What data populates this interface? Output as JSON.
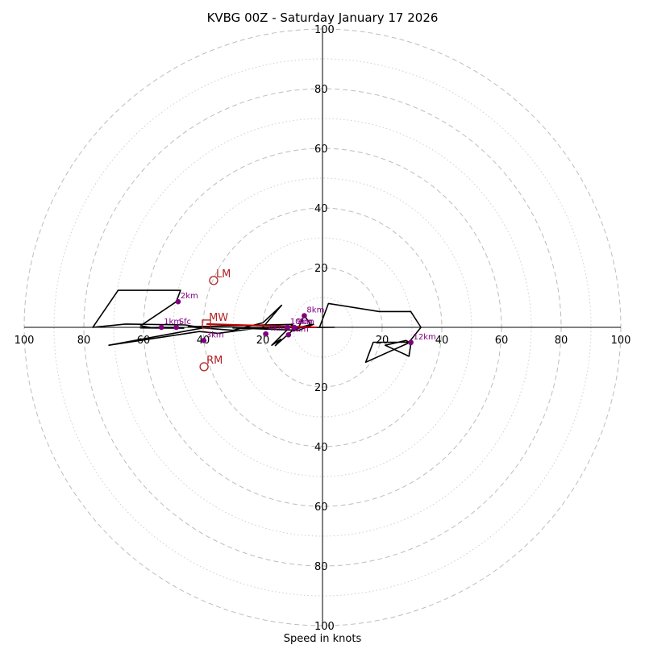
{
  "chart_data": {
    "type": "hodograph",
    "title": "KVBG 00Z - Saturday January 17 2026",
    "xlabel": "Speed in knots",
    "units": "knots",
    "max_speed": 100,
    "major_rings": [
      20,
      40,
      60,
      80,
      100
    ],
    "minor_rings": [
      10,
      30,
      50,
      70,
      90
    ],
    "x_ticks": [
      {
        "value": -100,
        "label": "100"
      },
      {
        "value": -80,
        "label": "80"
      },
      {
        "value": -60,
        "label": "60"
      },
      {
        "value": -40,
        "label": "40"
      },
      {
        "value": -20,
        "label": "20"
      },
      {
        "value": 20,
        "label": "20"
      },
      {
        "value": 40,
        "label": "40"
      },
      {
        "value": 60,
        "label": "60"
      },
      {
        "value": 80,
        "label": "80"
      },
      {
        "value": 100,
        "label": "100"
      }
    ],
    "y_ticks": [
      {
        "value": 100,
        "label": "100"
      },
      {
        "value": 80,
        "label": "80"
      },
      {
        "value": 60,
        "label": "60"
      },
      {
        "value": 40,
        "label": "40"
      },
      {
        "value": 20,
        "label": "20"
      },
      {
        "value": -20,
        "label": "20"
      },
      {
        "value": -40,
        "label": "40"
      },
      {
        "value": -60,
        "label": "60"
      },
      {
        "value": -80,
        "label": "80"
      },
      {
        "value": -100,
        "label": "100"
      }
    ],
    "trace": [
      [
        -49,
        0
      ],
      [
        -54,
        0
      ],
      [
        -61,
        -0.2
      ],
      [
        -46.5,
        -0.3
      ],
      [
        -57,
        -0.2
      ],
      [
        -61,
        0.5
      ],
      [
        -49,
        8.6
      ],
      [
        -47.6,
        12.4
      ],
      [
        -68.5,
        12.4
      ],
      [
        -77,
        0
      ],
      [
        -66,
        1.1
      ],
      [
        -46,
        0.8
      ],
      [
        -40,
        -0.2
      ],
      [
        -71.6,
        -6
      ],
      [
        -41.3,
        -1.4
      ],
      [
        -35,
        -2
      ],
      [
        -20,
        0
      ],
      [
        -13.7,
        7.4
      ],
      [
        -20,
        1.5
      ],
      [
        -30,
        -1
      ],
      [
        -45,
        0.2
      ],
      [
        -10,
        1
      ],
      [
        -17,
        -6
      ],
      [
        -14,
        -4
      ],
      [
        -15.8,
        -6.1
      ],
      [
        -10,
        -1
      ],
      [
        -4,
        1
      ],
      [
        -6.1,
        4
      ],
      [
        -8,
        0
      ],
      [
        -3,
        1
      ],
      [
        -8,
        -1
      ],
      [
        -30,
        -0.2
      ],
      [
        4,
        0
      ],
      [
        -1,
        0
      ],
      [
        2,
        8
      ],
      [
        19,
        5.3
      ],
      [
        29.6,
        5.3
      ],
      [
        33,
        0
      ],
      [
        29,
        -5
      ],
      [
        28,
        -4.4
      ],
      [
        21,
        -6
      ],
      [
        29,
        -9.7
      ],
      [
        29.7,
        -5
      ],
      [
        17,
        -5
      ],
      [
        14.5,
        -11.7
      ],
      [
        28.5,
        -5.4
      ],
      [
        30,
        -4.5
      ],
      [
        30.4,
        -5.1
      ]
    ],
    "height_markers": [
      {
        "label": "Sfc",
        "u": -49,
        "v": 0
      },
      {
        "label": "1km",
        "u": -54,
        "v": 0
      },
      {
        "label": "2km",
        "u": -48.4,
        "v": 8.6
      },
      {
        "label": "3km",
        "u": -39.8,
        "v": -4.4
      },
      {
        "label": "4km",
        "u": -19,
        "v": -2.2
      },
      {
        "label": "6km",
        "u": -11.4,
        "v": -2.5
      },
      {
        "label": "8km",
        "u": -6.1,
        "v": 3.9
      },
      {
        "label": "9km",
        "u": -9.5,
        "v": 0
      },
      {
        "label": "10km",
        "u": -11.7,
        "v": 0
      },
      {
        "label": "12km",
        "u": 29.6,
        "v": -5.1
      }
    ],
    "storm_motions": [
      {
        "label": "LM",
        "u": -36.5,
        "v": 15.7,
        "shape": "circle"
      },
      {
        "label": "MW",
        "u": -38.9,
        "v": 1.1,
        "shape": "square"
      },
      {
        "label": "RM",
        "u": -39.7,
        "v": -13.2,
        "shape": "circle"
      }
    ],
    "shear_vector": {
      "from": [
        -38.9,
        1.1
      ],
      "to": [
        -2,
        0
      ]
    }
  }
}
